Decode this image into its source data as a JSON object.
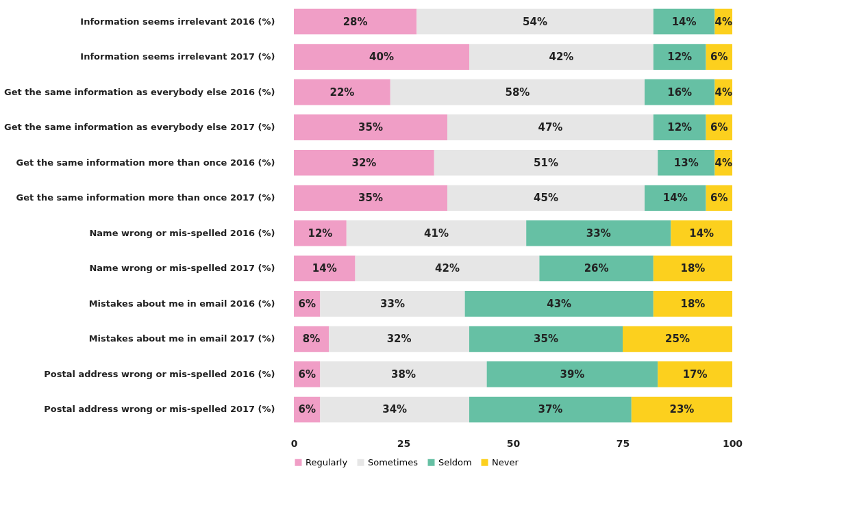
{
  "chart_data": {
    "type": "bar",
    "orientation": "horizontal",
    "stacked": true,
    "categories": [
      "Information seems irrelevant 2016 (%)",
      "Information seems irrelevant 2017 (%)",
      "Get the same information as everybody else 2016 (%)",
      "Get the same information as everybody else 2017 (%)",
      "Get the same information more than once 2016 (%)",
      "Get the same information more than once 2017 (%)",
      "Name wrong or mis-spelled 2016 (%)",
      "Name wrong or mis-spelled 2017 (%)",
      "Mistakes about me in email 2016 (%)",
      "Mistakes about me in email 2017 (%)",
      "Postal address wrong or mis-spelled 2016 (%)",
      "Postal address wrong or mis-spelled 2017 (%)"
    ],
    "series": [
      {
        "name": "Regularly",
        "color": "#f09ec6",
        "values": [
          28,
          40,
          22,
          35,
          32,
          35,
          12,
          14,
          6,
          8,
          6,
          6
        ],
        "value_labels": [
          "28%",
          "40%",
          "22%",
          "35%",
          "32%",
          "35%",
          "12%",
          "14%",
          "6%",
          "8%",
          "6%",
          "6%"
        ]
      },
      {
        "name": "Sometimes",
        "color": "#e6e6e6",
        "values": [
          54,
          42,
          58,
          47,
          51,
          45,
          41,
          42,
          33,
          32,
          38,
          34
        ],
        "value_labels": [
          "54%",
          "42%",
          "58%",
          "47%",
          "51%",
          "45%",
          "41%",
          "42%",
          "33%",
          "32%",
          "38%",
          "34%"
        ]
      },
      {
        "name": "Seldom",
        "color": "#66c0a4",
        "values": [
          14,
          12,
          16,
          12,
          13,
          14,
          33,
          26,
          43,
          35,
          39,
          37
        ],
        "value_labels": [
          "14%",
          "12%",
          "16%",
          "12%",
          "13%",
          "14%",
          "33%",
          "26%",
          "43%",
          "35%",
          "39%",
          "37%"
        ]
      },
      {
        "name": "Never",
        "color": "#fcd01e",
        "values": [
          4,
          6,
          4,
          6,
          4,
          6,
          14,
          18,
          18,
          25,
          17,
          23
        ],
        "value_labels": [
          "4%",
          "6%",
          "4%",
          "6%",
          "4%",
          "6%",
          "14%",
          "18%",
          "18%",
          "25%",
          "17%",
          "23%"
        ]
      }
    ],
    "xlim": [
      0,
      100
    ],
    "xticks": [
      0,
      25,
      50,
      75,
      100
    ],
    "grid": false,
    "legend": "bottom"
  }
}
